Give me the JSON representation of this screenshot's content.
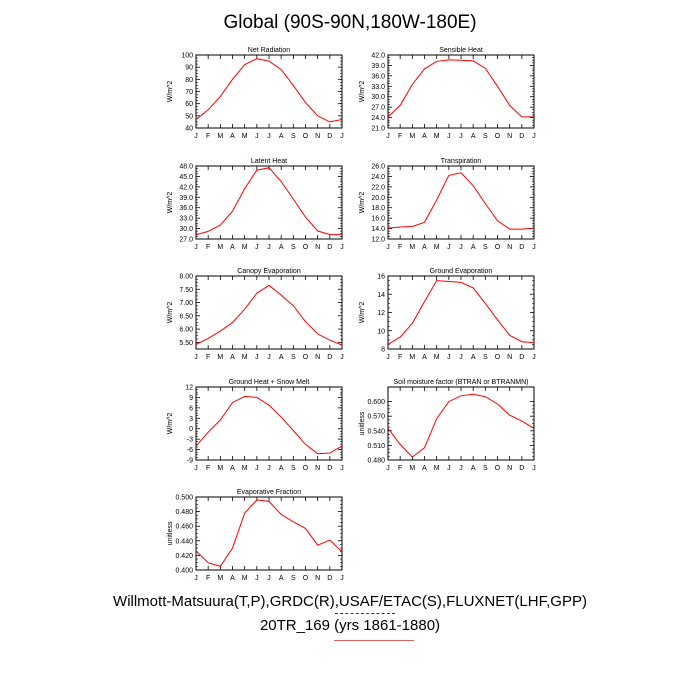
{
  "page": {
    "title": "Global (90S-90N,180W-180E)",
    "caption_line1": "Willmott-Matsuura(T,P),GRDC(R),USAF/ETAC(S),FLUXNET(LHF,GPP)",
    "caption_line2": "20TR_169 (yrs 1861-1880)"
  },
  "colors": {
    "line": "#ff0000",
    "axis": "#000000"
  },
  "chart_data": [
    {
      "type": "line",
      "title": "Net Radiation",
      "ylabel": "W/m^2",
      "categories": [
        "J",
        "F",
        "M",
        "A",
        "M",
        "J",
        "J",
        "A",
        "S",
        "O",
        "N",
        "D",
        "J"
      ],
      "ylim": [
        40,
        100
      ],
      "yticks": [
        40,
        50,
        60,
        70,
        80,
        90,
        100
      ],
      "ytick_labels": [
        "40",
        "50",
        "60",
        "70",
        "80",
        "90",
        "100"
      ],
      "values": [
        47,
        55,
        66,
        80,
        92,
        97,
        95,
        88,
        75,
        61,
        50,
        45,
        47
      ]
    },
    {
      "type": "line",
      "title": "Sensible Heat",
      "ylabel": "W/m^2",
      "categories": [
        "J",
        "F",
        "M",
        "A",
        "M",
        "J",
        "J",
        "A",
        "S",
        "O",
        "N",
        "D",
        "J"
      ],
      "ylim": [
        21,
        42
      ],
      "yticks": [
        21,
        24,
        27,
        30,
        33,
        36,
        39,
        42
      ],
      "ytick_labels": [
        "21.0",
        "24.0",
        "27.0",
        "30.0",
        "33.0",
        "36.0",
        "39.0",
        "42.0"
      ],
      "values": [
        24.2,
        27.5,
        33.5,
        38,
        40.2,
        40.6,
        40.5,
        40.3,
        38.2,
        33,
        27.5,
        24.2,
        24.2
      ]
    },
    {
      "type": "line",
      "title": "Latent Heat",
      "ylabel": "W/m^2",
      "categories": [
        "J",
        "F",
        "M",
        "A",
        "M",
        "J",
        "J",
        "A",
        "S",
        "O",
        "N",
        "D",
        "J"
      ],
      "ylim": [
        27,
        48
      ],
      "yticks": [
        27,
        30,
        33,
        36,
        39,
        42,
        45,
        48
      ],
      "ytick_labels": [
        "27.0",
        "30.0",
        "33.0",
        "36.0",
        "39.0",
        "42.0",
        "45.0",
        "48.0"
      ],
      "values": [
        28.2,
        29.2,
        31,
        35,
        41.5,
        46.8,
        47.5,
        43.5,
        38.5,
        33.3,
        29.3,
        28.3,
        28.2
      ]
    },
    {
      "type": "line",
      "title": "Transpiration",
      "ylabel": "W/m^2",
      "categories": [
        "J",
        "F",
        "M",
        "A",
        "M",
        "J",
        "J",
        "A",
        "S",
        "O",
        "N",
        "D",
        "J"
      ],
      "ylim": [
        12,
        26
      ],
      "yticks": [
        12,
        14,
        16,
        18,
        20,
        22,
        24,
        26
      ],
      "ytick_labels": [
        "12.0",
        "14.0",
        "16.0",
        "18.0",
        "20.0",
        "22.0",
        "24.0",
        "26.0"
      ],
      "values": [
        14.1,
        14.3,
        14.4,
        15.2,
        19.5,
        24.2,
        24.7,
        22.2,
        18.8,
        15.5,
        13.9,
        13.9,
        14.1
      ]
    },
    {
      "type": "line",
      "title": "Canopy Evaporation",
      "ylabel": "W/m^2",
      "categories": [
        "J",
        "F",
        "M",
        "A",
        "M",
        "J",
        "J",
        "A",
        "S",
        "O",
        "N",
        "D",
        "J"
      ],
      "ylim": [
        5.25,
        8.0
      ],
      "yticks": [
        5.5,
        6.0,
        6.5,
        7.0,
        7.5,
        8.0
      ],
      "ytick_labels": [
        "5.50",
        "6.00",
        "6.50",
        "7.00",
        "7.50",
        "8.00"
      ],
      "values": [
        5.42,
        5.65,
        5.92,
        6.25,
        6.75,
        7.35,
        7.65,
        7.28,
        6.88,
        6.28,
        5.82,
        5.58,
        5.4
      ]
    },
    {
      "type": "line",
      "title": "Ground Evaporation",
      "ylabel": "W/m^2",
      "categories": [
        "J",
        "F",
        "M",
        "A",
        "M",
        "J",
        "J",
        "A",
        "S",
        "O",
        "N",
        "D",
        "J"
      ],
      "ylim": [
        8,
        16
      ],
      "yticks": [
        8,
        10,
        12,
        14,
        16
      ],
      "ytick_labels": [
        "8",
        "10",
        "12",
        "14",
        "16"
      ],
      "values": [
        8.5,
        9.3,
        10.8,
        13.2,
        15.5,
        15.4,
        15.3,
        14.7,
        13,
        11.2,
        9.5,
        8.8,
        8.7
      ]
    },
    {
      "type": "line",
      "title": "Ground Heat + Snow Melt",
      "ylabel": "W/m^2",
      "categories": [
        "J",
        "F",
        "M",
        "A",
        "M",
        "J",
        "J",
        "A",
        "S",
        "O",
        "N",
        "D",
        "J"
      ],
      "ylim": [
        -9,
        12
      ],
      "yticks": [
        -9,
        -6,
        -3,
        0,
        3,
        6,
        9,
        12
      ],
      "ytick_labels": [
        "-9",
        "-6",
        "-3",
        "0",
        "3",
        "6",
        "9",
        "12"
      ],
      "values": [
        -5,
        -1,
        2.5,
        7.5,
        9.3,
        9,
        6.8,
        3.3,
        -0.5,
        -4.5,
        -7.2,
        -7,
        -5
      ]
    },
    {
      "type": "line",
      "title": "Soil moisture factor (BTRAN or BTRANMN)",
      "ylabel": "unitless",
      "categories": [
        "J",
        "F",
        "M",
        "A",
        "M",
        "J",
        "J",
        "A",
        "S",
        "O",
        "N",
        "D",
        "J"
      ],
      "ylim": [
        0.48,
        0.63
      ],
      "yticks": [
        0.48,
        0.51,
        0.54,
        0.57,
        0.6
      ],
      "ytick_labels": [
        "0.480",
        "0.510",
        "0.540",
        "0.570",
        "0.600"
      ],
      "values": [
        0.545,
        0.512,
        0.486,
        0.505,
        0.565,
        0.6,
        0.612,
        0.615,
        0.61,
        0.595,
        0.572,
        0.56,
        0.545
      ]
    },
    {
      "type": "line",
      "title": "Evaporative Fraction",
      "ylabel": "unitless",
      "categories": [
        "J",
        "F",
        "M",
        "A",
        "M",
        "J",
        "J",
        "A",
        "S",
        "O",
        "N",
        "D",
        "J"
      ],
      "ylim": [
        0.4,
        0.5
      ],
      "yticks": [
        0.4,
        0.42,
        0.44,
        0.46,
        0.48,
        0.5
      ],
      "ytick_labels": [
        "0.400",
        "0.420",
        "0.440",
        "0.460",
        "0.480",
        "0.500"
      ],
      "values": [
        0.426,
        0.41,
        0.405,
        0.43,
        0.478,
        0.496,
        0.494,
        0.476,
        0.466,
        0.457,
        0.434,
        0.441,
        0.425
      ]
    }
  ]
}
